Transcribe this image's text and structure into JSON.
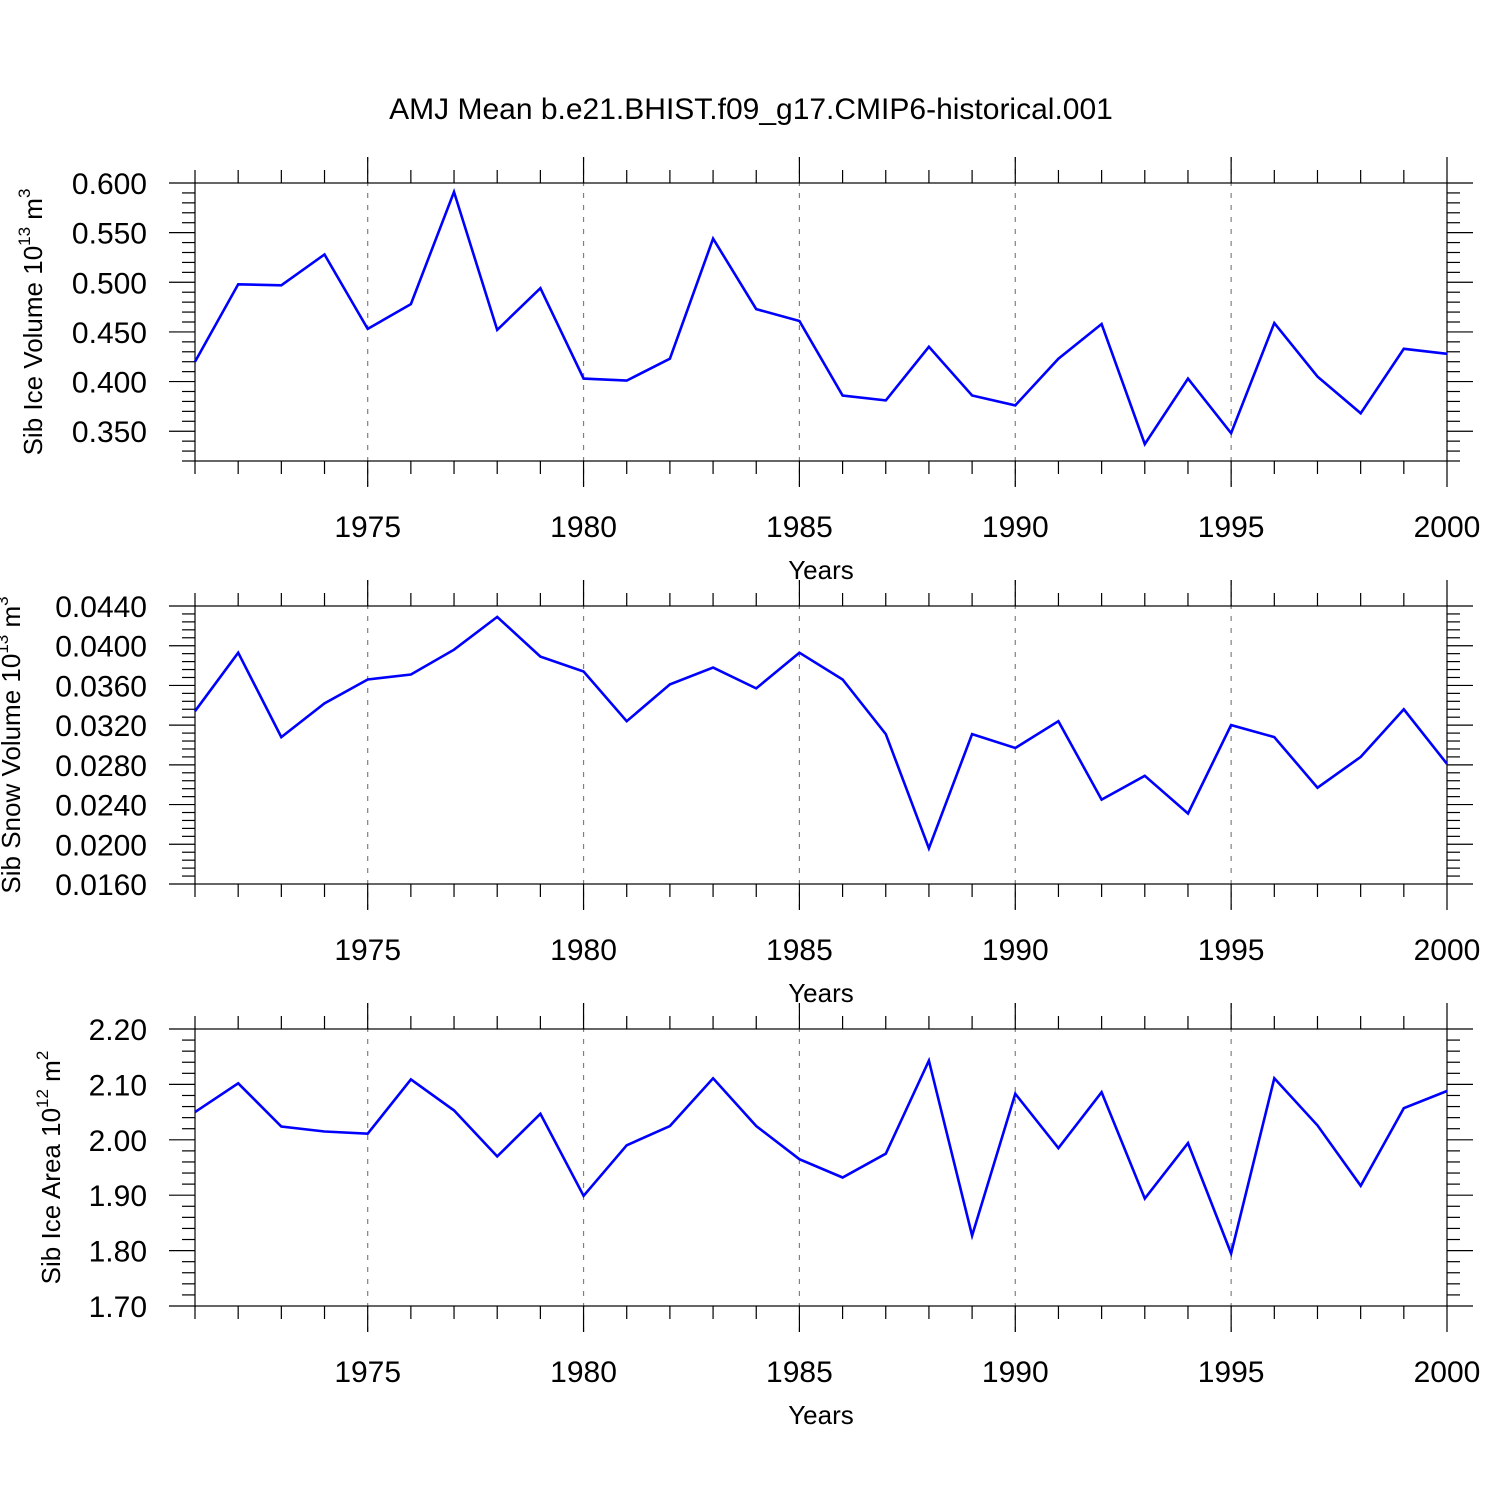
{
  "figure": {
    "title": "AMJ Mean b.e21.BHIST.f09_g17.CMIP6-historical.001"
  },
  "chart_data": [
    {
      "type": "line",
      "id": "ice-volume",
      "title": "AMJ Mean b.e21.BHIST.f09_g17.CMIP6-historical.001",
      "xlabel": "Years",
      "ylabel": "Sib Ice Volume 10",
      "ylabel_sup": "13",
      "ylabel_unit": " m",
      "ylabel_unit_sup": "3",
      "xlim": [
        1971,
        2000
      ],
      "ylim": [
        0.32,
        0.6
      ],
      "yticks": [
        0.35,
        0.4,
        0.45,
        0.5,
        0.55,
        0.6
      ],
      "ytick_labels": [
        "0.350",
        "0.400",
        "0.450",
        "0.500",
        "0.550",
        "0.600"
      ],
      "xticks": [
        1975,
        1980,
        1985,
        1990,
        1995,
        2000
      ],
      "xtick_labels": [
        "1975",
        "1980",
        "1985",
        "1990",
        "1995",
        "2000"
      ],
      "grid": "dashed vertical at major x ticks",
      "x": [
        1971,
        1972,
        1973,
        1974,
        1975,
        1976,
        1977,
        1978,
        1979,
        1980,
        1981,
        1982,
        1983,
        1984,
        1985,
        1986,
        1987,
        1988,
        1989,
        1990,
        1991,
        1992,
        1993,
        1994,
        1995,
        1996,
        1997,
        1998,
        1999,
        2000
      ],
      "series": [
        {
          "name": "Sib Ice Volume",
          "color": "#0000ff",
          "values": [
            0.42,
            0.498,
            0.497,
            0.528,
            0.453,
            0.478,
            0.591,
            0.452,
            0.494,
            0.403,
            0.401,
            0.423,
            0.544,
            0.473,
            0.461,
            0.386,
            0.381,
            0.435,
            0.386,
            0.376,
            0.423,
            0.458,
            0.337,
            0.403,
            0.348,
            0.459,
            0.405,
            0.368,
            0.433,
            0.428
          ]
        }
      ]
    },
    {
      "type": "line",
      "id": "snow-volume",
      "xlabel": "Years",
      "ylabel": "Sib Snow Volume 10",
      "ylabel_sup": "13",
      "ylabel_unit": " m",
      "ylabel_unit_sup": "3",
      "xlim": [
        1971,
        2000
      ],
      "ylim": [
        0.016,
        0.044
      ],
      "yticks": [
        0.016,
        0.02,
        0.024,
        0.028,
        0.032,
        0.036,
        0.04,
        0.044
      ],
      "ytick_labels": [
        "0.0160",
        "0.0200",
        "0.0240",
        "0.0280",
        "0.0320",
        "0.0360",
        "0.0400",
        "0.0440"
      ],
      "xticks": [
        1975,
        1980,
        1985,
        1990,
        1995,
        2000
      ],
      "xtick_labels": [
        "1975",
        "1980",
        "1985",
        "1990",
        "1995",
        "2000"
      ],
      "grid": "dashed vertical at major x ticks",
      "x": [
        1971,
        1972,
        1973,
        1974,
        1975,
        1976,
        1977,
        1978,
        1979,
        1980,
        1981,
        1982,
        1983,
        1984,
        1985,
        1986,
        1987,
        1988,
        1989,
        1990,
        1991,
        1992,
        1993,
        1994,
        1995,
        1996,
        1997,
        1998,
        1999,
        2000
      ],
      "series": [
        {
          "name": "Sib Snow Volume",
          "color": "#0000ff",
          "values": [
            0.0334,
            0.0393,
            0.0308,
            0.0342,
            0.0366,
            0.0371,
            0.0396,
            0.0429,
            0.0389,
            0.0374,
            0.0324,
            0.0361,
            0.0378,
            0.0357,
            0.0393,
            0.0366,
            0.0311,
            0.0196,
            0.0311,
            0.0297,
            0.0324,
            0.0245,
            0.0269,
            0.0231,
            0.032,
            0.0308,
            0.0257,
            0.0288,
            0.0336,
            0.0281
          ]
        }
      ]
    },
    {
      "type": "line",
      "id": "ice-area",
      "xlabel": "Years",
      "ylabel": "Sib Ice Area 10",
      "ylabel_sup": "12",
      "ylabel_unit": " m",
      "ylabel_unit_sup": "2",
      "xlim": [
        1971,
        2000
      ],
      "ylim": [
        1.7,
        2.2
      ],
      "yticks": [
        1.7,
        1.8,
        1.9,
        2.0,
        2.1,
        2.2
      ],
      "ytick_labels": [
        "1.70",
        "1.80",
        "1.90",
        "2.00",
        "2.10",
        "2.20"
      ],
      "xticks": [
        1975,
        1980,
        1985,
        1990,
        1995,
        2000
      ],
      "xtick_labels": [
        "1975",
        "1980",
        "1985",
        "1990",
        "1995",
        "2000"
      ],
      "grid": "dashed vertical at major x ticks",
      "x": [
        1971,
        1972,
        1973,
        1974,
        1975,
        1976,
        1977,
        1978,
        1979,
        1980,
        1981,
        1982,
        1983,
        1984,
        1985,
        1986,
        1987,
        1988,
        1989,
        1990,
        1991,
        1992,
        1993,
        1994,
        1995,
        1996,
        1997,
        1998,
        1999,
        2000
      ],
      "series": [
        {
          "name": "Sib Ice Area",
          "color": "#0000ff",
          "values": [
            2.05,
            2.102,
            2.024,
            2.015,
            2.011,
            2.109,
            2.053,
            1.97,
            2.047,
            1.899,
            1.99,
            2.025,
            2.111,
            2.025,
            1.965,
            1.932,
            1.975,
            2.143,
            1.827,
            2.083,
            1.985,
            2.086,
            1.894,
            1.994,
            1.795,
            2.111,
            2.026,
            1.917,
            2.057,
            2.088
          ]
        }
      ]
    }
  ]
}
